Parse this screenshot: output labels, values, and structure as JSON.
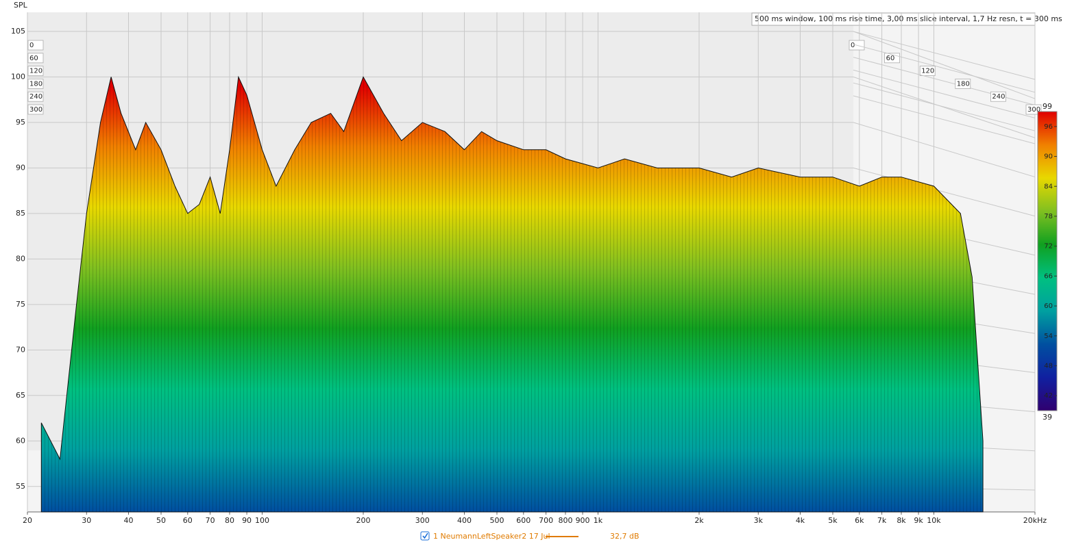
{
  "chart_data": {
    "type": "waterfall",
    "y_label": "SPL",
    "annotation": "500 ms window, 100 ms rise time, 3,00 ms slice interval, 1,7 Hz resn, t = 300 ms",
    "x": [
      22,
      25,
      28,
      30,
      33,
      35.5,
      38,
      42,
      45,
      50,
      55,
      60,
      65,
      70,
      75,
      80,
      85,
      90,
      100,
      110,
      125,
      140,
      160,
      175,
      200,
      230,
      260,
      300,
      350,
      400,
      450,
      500,
      600,
      700,
      800,
      1000,
      1200,
      1500,
      2000,
      2500,
      3000,
      4000,
      5000,
      6000,
      7000,
      8000,
      10000,
      12000,
      13000,
      14000
    ],
    "series": [
      {
        "name": "1 NeumannLeftSpeaker2 17 Jul",
        "color": "#e07b00",
        "checked": true,
        "offset_label": "32,7 dB",
        "values": [
          62,
          58,
          75,
          85,
          95,
          100,
          96,
          92,
          95,
          92,
          88,
          85,
          86,
          89,
          85,
          92,
          100,
          98,
          92,
          88,
          92,
          95,
          96,
          94,
          100,
          96,
          93,
          95,
          94,
          92,
          94,
          93,
          92,
          92,
          91,
          90,
          91,
          90,
          90,
          89,
          90,
          89,
          89,
          88,
          89,
          89,
          88,
          85,
          78,
          60
        ]
      }
    ],
    "xscale": "log",
    "xlim": [
      20,
      20000
    ],
    "xticks": [
      20,
      30,
      40,
      50,
      60,
      70,
      80,
      90,
      100,
      200,
      300,
      400,
      500,
      600,
      700,
      800,
      900,
      {
        "value": 1000,
        "label": "1k"
      },
      {
        "value": 2000,
        "label": "2k"
      },
      {
        "value": 3000,
        "label": "3k"
      },
      {
        "value": 4000,
        "label": "4k"
      },
      {
        "value": 5000,
        "label": "5k"
      },
      {
        "value": 6000,
        "label": "6k"
      },
      {
        "value": 7000,
        "label": "7k"
      },
      {
        "value": 8000,
        "label": "8k"
      },
      {
        "value": 9000,
        "label": "9k"
      },
      {
        "value": 10000,
        "label": "10k"
      },
      {
        "value": 20000,
        "label": "20kHz"
      }
    ],
    "ylim": [
      52.2,
      107.1
    ],
    "yticks": [
      55,
      60,
      65,
      70,
      75,
      80,
      85,
      90,
      95,
      100,
      105
    ],
    "time_lim": [
      0,
      300
    ],
    "time_ticks": [
      0,
      60,
      120,
      180,
      240,
      300
    ],
    "grid": true,
    "colorbar": {
      "lim": [
        39,
        99
      ],
      "ticks": [
        42,
        48,
        54,
        60,
        66,
        72,
        78,
        84,
        90,
        96
      ],
      "colors": [
        "#300070",
        "#1020a0",
        "#0050a0",
        "#00a0a0",
        "#00c080",
        "#10a020",
        "#80c020",
        "#e8d800",
        "#f08000",
        "#e00000"
      ]
    }
  }
}
